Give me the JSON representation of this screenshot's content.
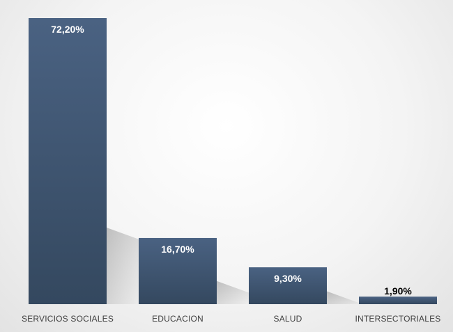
{
  "chart_data": {
    "type": "bar",
    "categories": [
      "SERVICIOS SOCIALES",
      "EDUCACION",
      "SALUD",
      "INTERSECTORIALES"
    ],
    "values": [
      72.2,
      16.7,
      9.3,
      1.9
    ],
    "data_labels": [
      "72,20%",
      "16,70%",
      "9,30%",
      "1,90%"
    ],
    "ylim": [
      0,
      72.2
    ],
    "grid": false,
    "legend": "none",
    "bar_color": "#3f5573",
    "label_inside_color": "#ffffff",
    "label_outside_color": "#000000",
    "category_label_color": "#404040"
  }
}
